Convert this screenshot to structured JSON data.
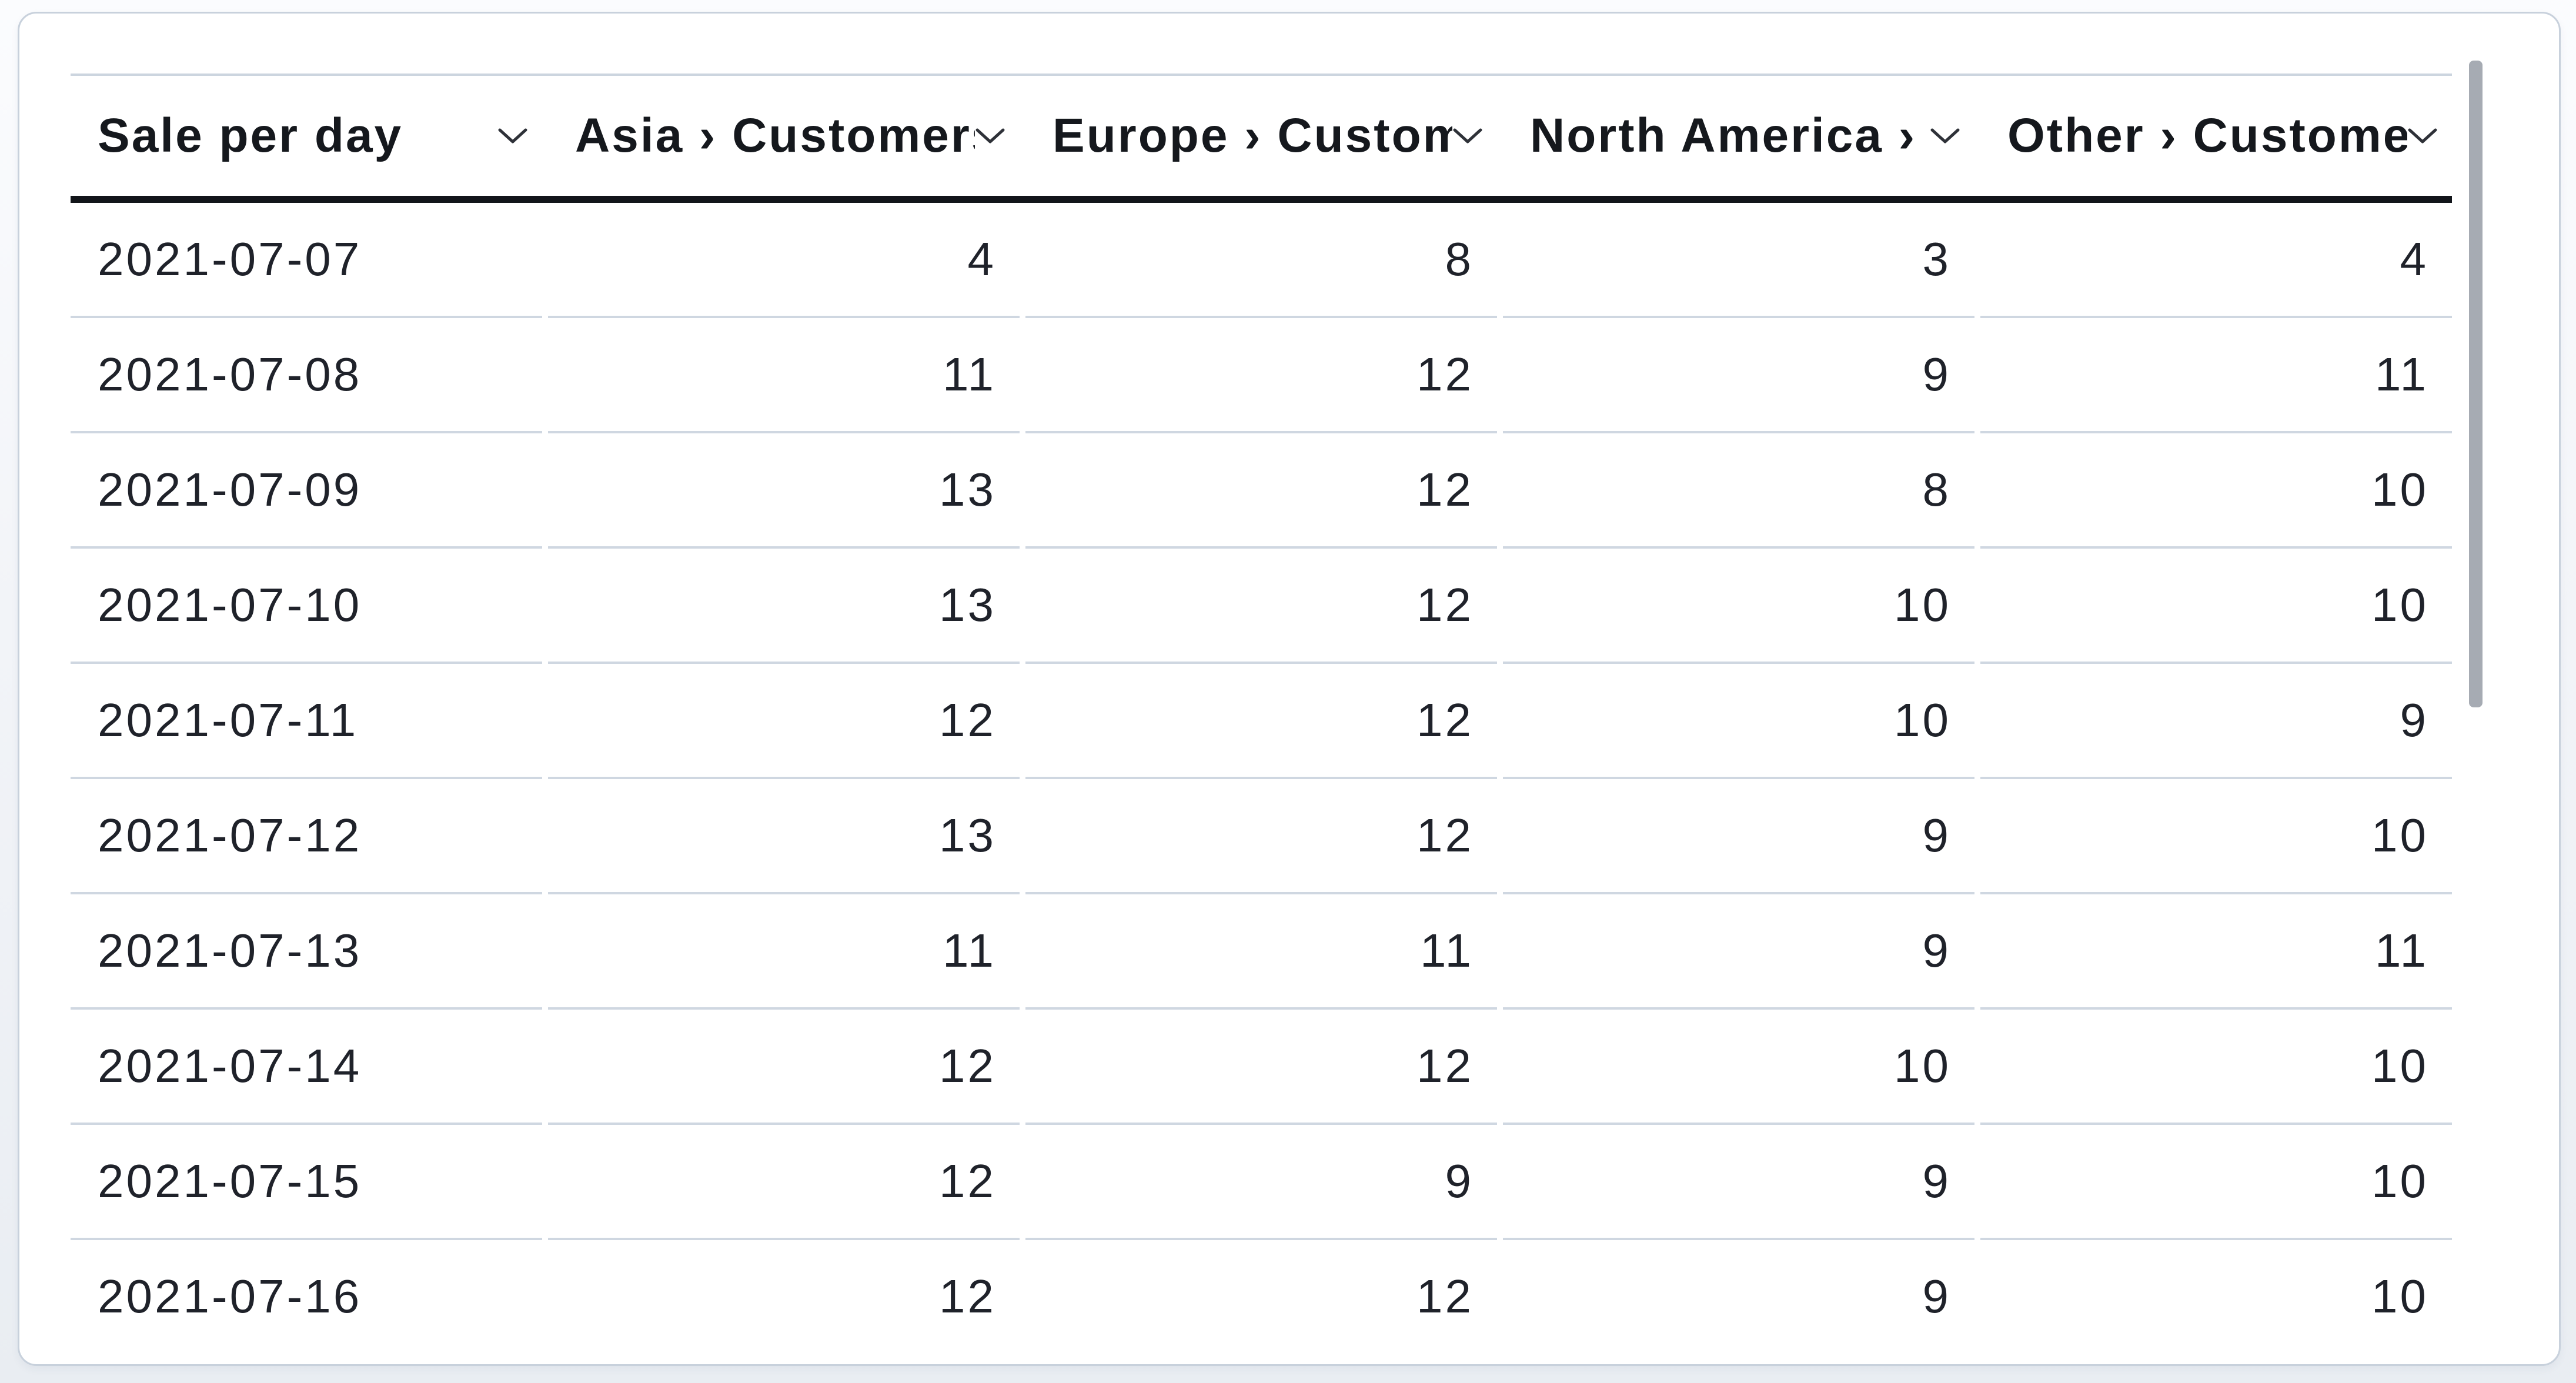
{
  "table": {
    "columns": [
      {
        "label": "Sale per day"
      },
      {
        "label": "Asia › Customers"
      },
      {
        "label": "Europe › Custom"
      },
      {
        "label": "North America › "
      },
      {
        "label": "Other › Custome"
      }
    ],
    "rows": [
      {
        "cells": [
          "2021-07-07",
          "4",
          "8",
          "3",
          "4"
        ]
      },
      {
        "cells": [
          "2021-07-08",
          "11",
          "12",
          "9",
          "11"
        ]
      },
      {
        "cells": [
          "2021-07-09",
          "13",
          "12",
          "8",
          "10"
        ]
      },
      {
        "cells": [
          "2021-07-10",
          "13",
          "12",
          "10",
          "10"
        ]
      },
      {
        "cells": [
          "2021-07-11",
          "12",
          "12",
          "10",
          "9"
        ]
      },
      {
        "cells": [
          "2021-07-12",
          "13",
          "12",
          "9",
          "10"
        ]
      },
      {
        "cells": [
          "2021-07-13",
          "11",
          "11",
          "9",
          "11"
        ]
      },
      {
        "cells": [
          "2021-07-14",
          "12",
          "12",
          "10",
          "10"
        ]
      },
      {
        "cells": [
          "2021-07-15",
          "12",
          "9",
          "9",
          "10"
        ]
      },
      {
        "cells": [
          "2021-07-16",
          "12",
          "12",
          "9",
          "10"
        ]
      }
    ]
  },
  "scrollbar": {
    "orientation": "vertical"
  },
  "colors": {
    "header_text": "#15181d",
    "body_text": "#1f222a",
    "header_rule": "#12151a",
    "row_separator": "#cfd7e1",
    "table_top_border": "#ccd5df",
    "card_border": "#c8d1dc",
    "card_background": "#ffffff",
    "scrollbar_thumb": "#a6abb3"
  },
  "chart_data": {
    "type": "table",
    "title": "Sale per day",
    "columns": [
      "Sale per day",
      "Asia › Customers",
      "Europe › Custom…",
      "North America › …",
      "Other › Custome…"
    ],
    "x": [
      "2021-07-07",
      "2021-07-08",
      "2021-07-09",
      "2021-07-10",
      "2021-07-11",
      "2021-07-12",
      "2021-07-13",
      "2021-07-14",
      "2021-07-15",
      "2021-07-16"
    ],
    "series": [
      {
        "name": "Asia › Customers",
        "values": [
          4,
          11,
          13,
          13,
          12,
          13,
          11,
          12,
          12,
          12
        ]
      },
      {
        "name": "Europe › Custom…",
        "values": [
          8,
          12,
          12,
          12,
          12,
          12,
          11,
          12,
          9,
          12
        ]
      },
      {
        "name": "North America › …",
        "values": [
          3,
          9,
          8,
          10,
          10,
          9,
          9,
          10,
          9,
          9
        ]
      },
      {
        "name": "Other › Custome…",
        "values": [
          4,
          11,
          10,
          10,
          9,
          10,
          11,
          10,
          10,
          10
        ]
      }
    ],
    "layout": {
      "first_column_align": "left",
      "value_columns_align": "right",
      "header_sort_chevrons": true,
      "vertical_scrollbar": true
    }
  }
}
